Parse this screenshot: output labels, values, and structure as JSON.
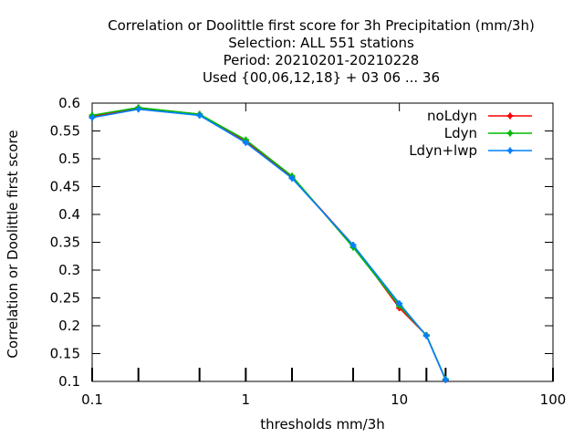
{
  "chart_data": {
    "type": "line",
    "title_lines": [
      "Correlation or Doolittle first score  for 3h Precipitation (mm/3h)",
      "Selection: ALL    551 stations",
      "Period: 20210201-20210228",
      "Used {00,06,12,18} + 03 06 ... 36"
    ],
    "xlabel": "thresholds mm/3h",
    "ylabel": "Correlation or Doolittle first score",
    "xscale": "log",
    "xlim": [
      0.1,
      100
    ],
    "ylim": [
      0.1,
      0.6
    ],
    "xticks": [
      {
        "v": 0.1,
        "label": "0.1"
      },
      {
        "v": 1,
        "label": "1"
      },
      {
        "v": 10,
        "label": "10"
      },
      {
        "v": 100,
        "label": "100"
      }
    ],
    "xticks_minor": [
      0.2,
      0.5,
      2,
      5,
      15,
      20
    ],
    "yticks": [
      {
        "v": 0.1,
        "label": "0.1"
      },
      {
        "v": 0.15,
        "label": "0.15"
      },
      {
        "v": 0.2,
        "label": "0.2"
      },
      {
        "v": 0.25,
        "label": "0.25"
      },
      {
        "v": 0.3,
        "label": "0.3"
      },
      {
        "v": 0.35,
        "label": "0.35"
      },
      {
        "v": 0.4,
        "label": "0.4"
      },
      {
        "v": 0.45,
        "label": "0.45"
      },
      {
        "v": 0.5,
        "label": "0.5"
      },
      {
        "v": 0.55,
        "label": "0.55"
      },
      {
        "v": 0.6,
        "label": "0.6"
      }
    ],
    "grid": false,
    "legend_position": "top-right",
    "x": [
      0.1,
      0.2,
      0.5,
      1,
      2,
      5,
      10,
      15,
      20
    ],
    "series": [
      {
        "name": "noLdyn",
        "color": "#ff0000",
        "values": [
          0.576,
          0.591,
          0.58,
          0.531,
          0.467,
          0.345,
          0.232,
          0.183,
          0.103
        ]
      },
      {
        "name": "Ldyn",
        "color": "#00bb00",
        "values": [
          0.578,
          0.592,
          0.58,
          0.534,
          0.469,
          0.341,
          0.236,
          0.183,
          0.104
        ]
      },
      {
        "name": "Ldyn+lwp",
        "color": "#0080ff",
        "values": [
          0.574,
          0.589,
          0.578,
          0.529,
          0.465,
          0.345,
          0.24,
          0.182,
          0.103
        ]
      }
    ]
  }
}
